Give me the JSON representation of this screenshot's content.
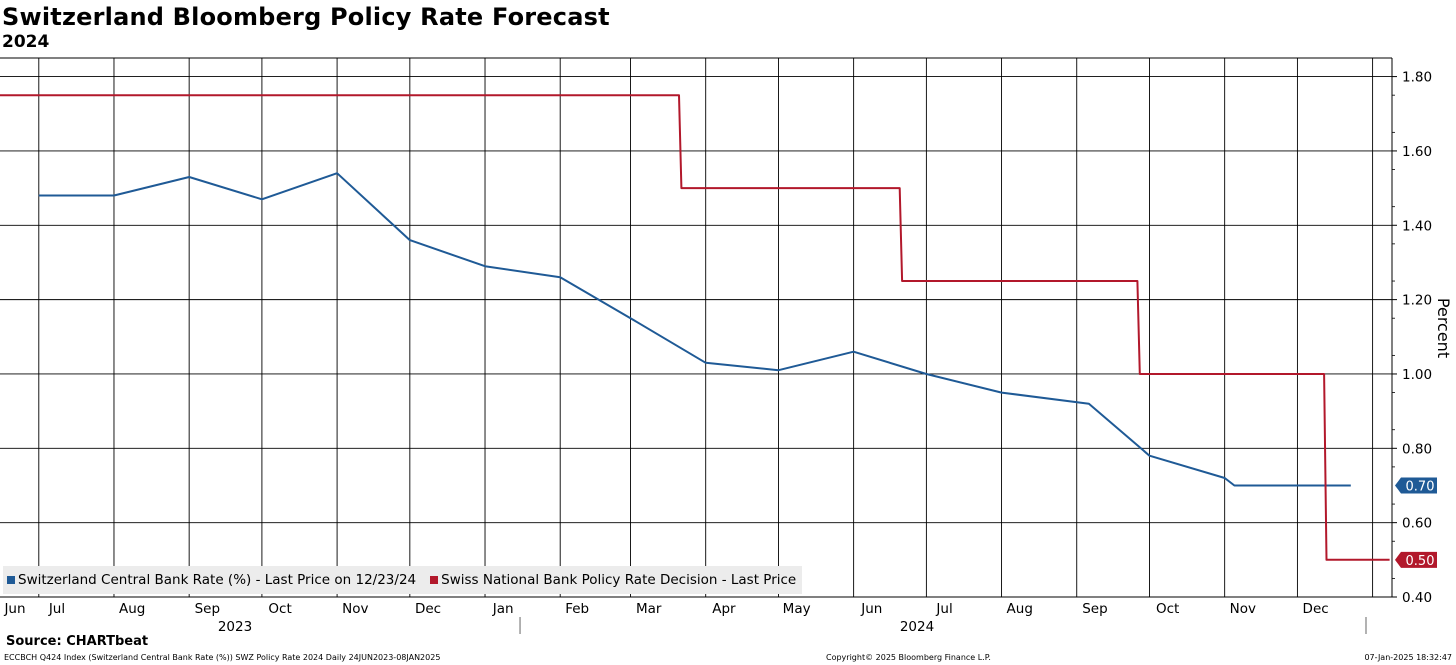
{
  "header": {
    "title": "Switzerland Bloomberg Policy Rate Forecast",
    "subtitle": "2024"
  },
  "source": "Source: CHARTbeat",
  "footer": {
    "left": "ECCBCH Q424 Index (Switzerland Central Bank Rate (%)) SWZ Policy Rate 2024  Daily 24JUN2023-08JAN2025",
    "center": "Copyright© 2025 Bloomberg Finance L.P.",
    "right": "07-Jan-2025 18:32:47"
  },
  "chart_data": {
    "type": "line",
    "title": "Switzerland Bloomberg Policy Rate Forecast",
    "subtitle": "2024",
    "ylabel": "Percent",
    "xlabel": "",
    "ylim": [
      0.4,
      1.85
    ],
    "yticks": [
      "1.80",
      "1.60",
      "1.40",
      "1.20",
      "1.00",
      "0.80",
      "0.60",
      "0.40"
    ],
    "xlim": [
      "2023-06-15",
      "2025-01-09"
    ],
    "x_tick_labels": [
      "Jun",
      "Jul",
      "Aug",
      "Sep",
      "Oct",
      "Nov",
      "Dec",
      "Jan",
      "Feb",
      "Mar",
      "Apr",
      "May",
      "Jun",
      "Jul",
      "Aug",
      "Sep",
      "Oct",
      "Nov",
      "Dec"
    ],
    "year_labels": [
      "2023",
      "2024"
    ],
    "grid": true,
    "legend_position": "bottom-left",
    "series": [
      {
        "name": "Switzerland Central Bank Rate (%) - Last Price on 12/23/24",
        "color": "#1f5a96",
        "last_value_label": "0.70",
        "points": [
          {
            "x": "2023-07-01",
            "y": 1.48
          },
          {
            "x": "2023-08-01",
            "y": 1.48
          },
          {
            "x": "2023-09-01",
            "y": 1.53
          },
          {
            "x": "2023-10-01",
            "y": 1.47
          },
          {
            "x": "2023-11-01",
            "y": 1.54
          },
          {
            "x": "2023-12-01",
            "y": 1.36
          },
          {
            "x": "2024-01-01",
            "y": 1.29
          },
          {
            "x": "2024-02-01",
            "y": 1.26
          },
          {
            "x": "2024-03-01",
            "y": 1.15
          },
          {
            "x": "2024-04-01",
            "y": 1.03
          },
          {
            "x": "2024-05-01",
            "y": 1.01
          },
          {
            "x": "2024-06-01",
            "y": 1.06
          },
          {
            "x": "2024-07-01",
            "y": 1.0
          },
          {
            "x": "2024-08-01",
            "y": 0.95
          },
          {
            "x": "2024-09-06",
            "y": 0.92
          },
          {
            "x": "2024-10-01",
            "y": 0.78
          },
          {
            "x": "2024-11-01",
            "y": 0.72
          },
          {
            "x": "2024-11-05",
            "y": 0.7
          },
          {
            "x": "2024-12-23",
            "y": 0.7
          }
        ]
      },
      {
        "name": "Swiss National Bank Policy Rate Decision - Last Price",
        "color": "#b2182b",
        "last_value_label": "0.50",
        "step": true,
        "points": [
          {
            "x": "2023-06-15",
            "y": 1.75
          },
          {
            "x": "2024-03-21",
            "y": 1.75
          },
          {
            "x": "2024-03-22",
            "y": 1.5
          },
          {
            "x": "2024-06-20",
            "y": 1.5
          },
          {
            "x": "2024-06-21",
            "y": 1.25
          },
          {
            "x": "2024-09-26",
            "y": 1.25
          },
          {
            "x": "2024-09-27",
            "y": 1.0
          },
          {
            "x": "2024-12-12",
            "y": 1.0
          },
          {
            "x": "2024-12-13",
            "y": 0.5
          },
          {
            "x": "2025-01-08",
            "y": 0.5
          }
        ]
      }
    ]
  }
}
